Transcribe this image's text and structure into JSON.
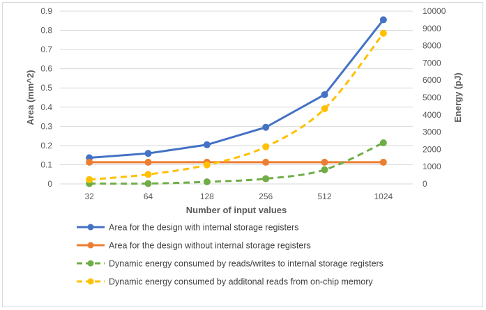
{
  "chart_data": {
    "type": "line",
    "categories": [
      "32",
      "64",
      "128",
      "256",
      "512",
      "1024"
    ],
    "xlabel": "Number of input values",
    "y_left": {
      "label": "Area (mm^2)",
      "range": [
        0,
        0.9
      ],
      "ticks": [
        "0",
        "0.1",
        "0.2",
        "0.3",
        "0.4",
        "0.5",
        "0.6",
        "0.7",
        "0.8",
        "0.9"
      ]
    },
    "y_right": {
      "label": "Energy (pJ)",
      "range": [
        0,
        10000
      ],
      "ticks": [
        "0",
        "1000",
        "2000",
        "3000",
        "4000",
        "5000",
        "6000",
        "7000",
        "8000",
        "9000",
        "10000"
      ]
    },
    "series": [
      {
        "name": "Area for the design with internal storage registers",
        "axis": "left",
        "style": "solid",
        "color": "#4472c4",
        "values": [
          0.136,
          0.159,
          0.204,
          0.295,
          0.465,
          0.855
        ]
      },
      {
        "name": "Area for the design without internal storage registers",
        "axis": "left",
        "style": "solid",
        "color": "#ed7d31",
        "values": [
          0.113,
          0.113,
          0.113,
          0.113,
          0.113,
          0.113
        ]
      },
      {
        "name": "Dynamic energy consumed by reads/writes to internal storage registers",
        "axis": "right",
        "style": "dashed",
        "color": "#70ad47",
        "values": [
          20,
          20,
          120,
          300,
          820,
          2380
        ]
      },
      {
        "name": "Dynamic energy consumed by additonal reads from on-chip memory",
        "axis": "right",
        "style": "dashed",
        "color": "#ffc000",
        "values": [
          250,
          550,
          1100,
          2150,
          4350,
          8720
        ]
      }
    ],
    "grid": true,
    "legend_position": "bottom"
  }
}
